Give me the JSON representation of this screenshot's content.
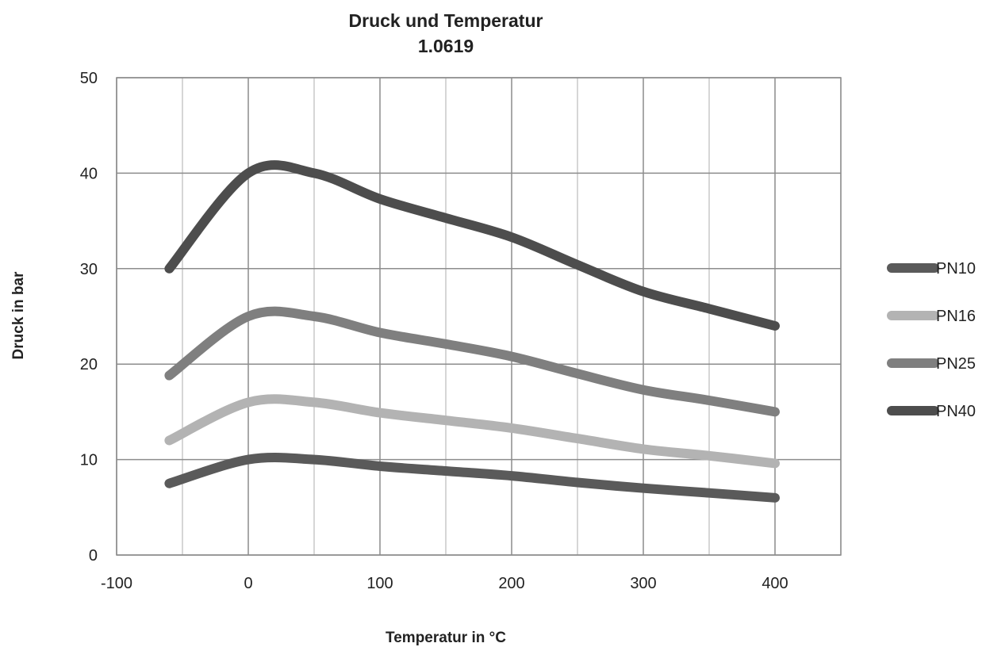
{
  "chart_data": {
    "type": "line",
    "title": "Druck und Temperatur",
    "subtitle": "1.0619",
    "xlabel": "Temperatur in °C",
    "ylabel": "Druck in bar",
    "xlim": [
      -100,
      450
    ],
    "ylim": [
      0,
      50
    ],
    "xticks": [
      -100,
      0,
      100,
      200,
      300,
      400
    ],
    "yticks": [
      0,
      10,
      20,
      30,
      40,
      50
    ],
    "grid": true,
    "legend_position": "right",
    "x": [
      -60,
      0,
      50,
      100,
      150,
      200,
      250,
      300,
      350,
      400
    ],
    "series": [
      {
        "name": "PN10",
        "color": "#5a5a5a",
        "values": [
          7.5,
          10.0,
          10.0,
          9.3,
          8.8,
          8.3,
          7.6,
          7.0,
          6.5,
          6.0
        ]
      },
      {
        "name": "PN16",
        "color": "#b3b3b3",
        "values": [
          12.0,
          16.0,
          16.0,
          14.9,
          14.1,
          13.3,
          12.2,
          11.1,
          10.4,
          9.6
        ]
      },
      {
        "name": "PN25",
        "color": "#7f7f7f",
        "values": [
          18.8,
          25.0,
          25.0,
          23.3,
          22.1,
          20.8,
          19.0,
          17.3,
          16.2,
          15.0
        ]
      },
      {
        "name": "PN40",
        "color": "#4d4d4d",
        "values": [
          30.0,
          40.0,
          40.0,
          37.3,
          35.3,
          33.3,
          30.4,
          27.6,
          25.8,
          24.0
        ]
      }
    ]
  }
}
